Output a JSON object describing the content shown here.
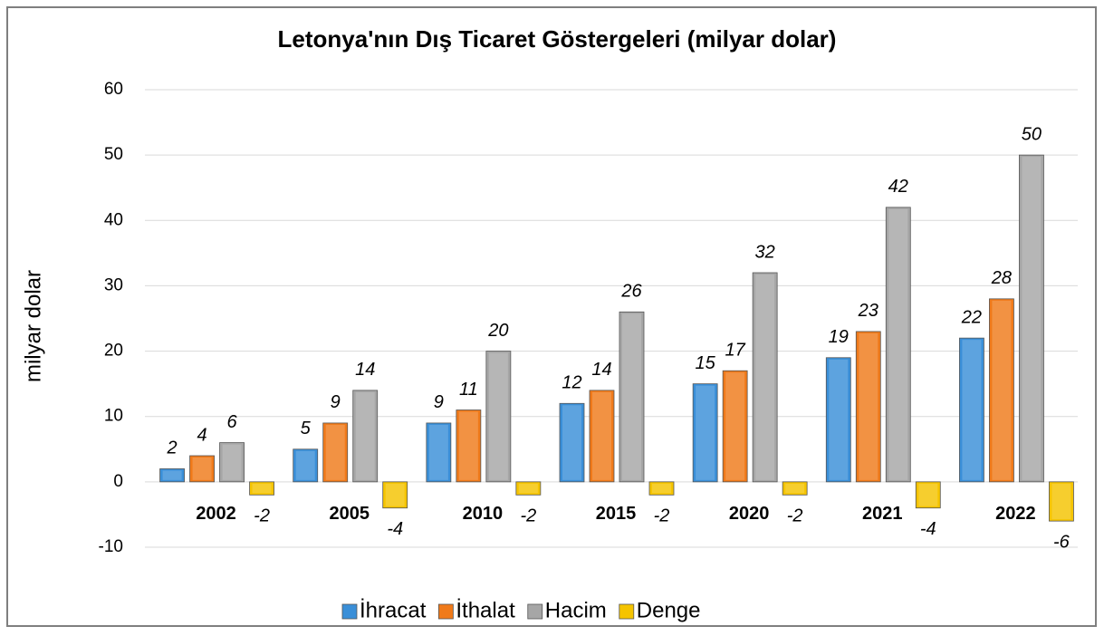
{
  "chart_data": {
    "type": "bar",
    "title": "Letonya'nın Dış Ticaret Göstergeleri  (milyar dolar)",
    "y_label": "milyar dolar",
    "categories": [
      "2002",
      "2005",
      "2010",
      "2015",
      "2020",
      "2021",
      "2022"
    ],
    "series": [
      {
        "name": "İhracat",
        "color": "#3a8fd8",
        "values": [
          2,
          5,
          9,
          12,
          15,
          19,
          22
        ]
      },
      {
        "name": "İthalat",
        "color": "#f07a1a",
        "values": [
          4,
          9,
          11,
          14,
          17,
          23,
          28
        ]
      },
      {
        "name": "Hacim",
        "color": "#a6a6a6",
        "values": [
          6,
          14,
          20,
          26,
          32,
          42,
          50
        ]
      },
      {
        "name": "Denge",
        "color": "#f5c400",
        "values": [
          -2,
          -4,
          -2,
          -2,
          -2,
          -4,
          -6
        ]
      }
    ],
    "ylim": [
      -10,
      60
    ],
    "yticks": [
      -10,
      0,
      10,
      20,
      30,
      40,
      50,
      60
    ],
    "grid": true,
    "legend": "bottom"
  }
}
